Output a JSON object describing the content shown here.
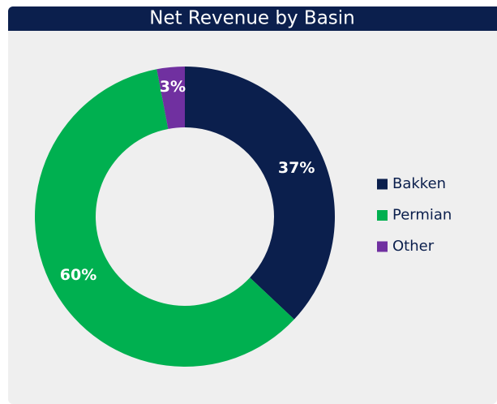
{
  "chart_data": {
    "type": "donut",
    "title": "Net Revenue by Basin",
    "categories": [
      "Bakken",
      "Permian",
      "Other"
    ],
    "values": [
      37,
      60,
      3
    ],
    "value_labels": [
      "37%",
      "60%",
      "3%"
    ],
    "colors": [
      "#0b1f4d",
      "#00b050",
      "#7030a0"
    ],
    "legend": "right"
  }
}
